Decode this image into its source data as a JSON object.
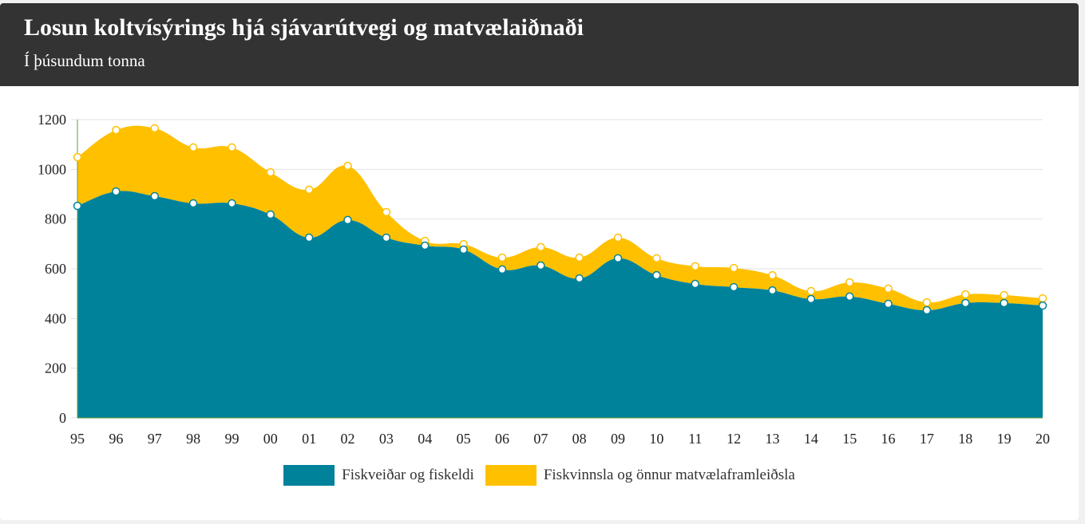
{
  "header": {
    "title": "Losun koltvísýrings hjá sjávarútvegi og matvælaiðnaði",
    "subtitle": "Í þúsundum tonna"
  },
  "chart_data": {
    "type": "area",
    "stacked": true,
    "title": "Losun koltvísýrings hjá sjávarútvegi og matvælaiðnaði",
    "subtitle": "Í þúsundum tonna",
    "categories": [
      "95",
      "96",
      "97",
      "98",
      "99",
      "00",
      "01",
      "02",
      "03",
      "04",
      "05",
      "06",
      "07",
      "08",
      "09",
      "10",
      "11",
      "12",
      "13",
      "14",
      "15",
      "16",
      "17",
      "18",
      "19",
      "20"
    ],
    "ylim": [
      0,
      1200
    ],
    "yticks": [
      0,
      200,
      400,
      600,
      800,
      1000,
      1200
    ],
    "grid": true,
    "legend_position": "bottom",
    "series": [
      {
        "name": "Fiskveiðar og fiskeldi",
        "color": "#00829b",
        "values": [
          853,
          911,
          892,
          863,
          863,
          818,
          725,
          796,
          725,
          693,
          677,
          597,
          613,
          561,
          642,
          574,
          539,
          526,
          513,
          478,
          488,
          459,
          433,
          462,
          462,
          452
        ]
      },
      {
        "name": "Fiskvinnsla og önnur matvælaframleiðsla",
        "color": "#ffc000",
        "values": [
          196,
          247,
          273,
          225,
          225,
          170,
          193,
          218,
          103,
          19,
          22,
          48,
          74,
          84,
          83,
          68,
          71,
          77,
          61,
          32,
          57,
          61,
          32,
          35,
          32,
          29
        ]
      }
    ]
  }
}
